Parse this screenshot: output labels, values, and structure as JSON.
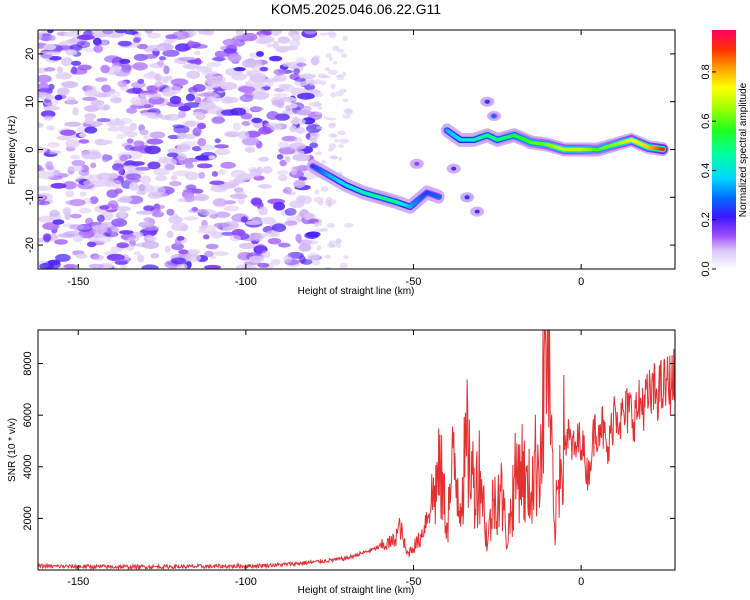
{
  "title": "KOM5.2025.046.06.22.G11",
  "colors": {
    "snr_line": "#e53030",
    "frame": "#000000",
    "background": "#ffffff"
  },
  "chart_data": [
    {
      "type": "heatmap",
      "title": "KOM5.2025.046.06.22.G11",
      "xlabel": "Height of straight line (km)",
      "ylabel": "Frequency (Hz)",
      "colorbar_label": "Normalized spectral amplitude",
      "colormap": "gist_rainbow (white/violet at 0 to red at 1)",
      "xlim": [
        -162,
        28
      ],
      "ylim": [
        -25,
        25
      ],
      "x_ticks": [
        -150,
        -100,
        -50,
        0
      ],
      "y_ticks": [
        -20,
        -10,
        0,
        10,
        20
      ],
      "colorbar_range": [
        0,
        0.97
      ],
      "colorbar_ticks": [
        0.0,
        0.2,
        0.4,
        0.6,
        0.8
      ],
      "noise_region_x": [
        -162,
        -79
      ],
      "signal_trace": [
        {
          "x": -80,
          "y": -3.5,
          "amp": 0.25
        },
        {
          "x": -75,
          "y": -5.5,
          "amp": 0.35
        },
        {
          "x": -70,
          "y": -7.5,
          "amp": 0.4
        },
        {
          "x": -65,
          "y": -9,
          "amp": 0.45
        },
        {
          "x": -60,
          "y": -10,
          "amp": 0.5
        },
        {
          "x": -55,
          "y": -11,
          "amp": 0.5
        },
        {
          "x": -51,
          "y": -12,
          "amp": 0.35
        },
        {
          "x": -46,
          "y": -9,
          "amp": 0.25
        },
        {
          "x": -42,
          "y": -10,
          "amp": 0.3
        },
        {
          "x": -40,
          "y": 4,
          "amp": 0.35
        },
        {
          "x": -36,
          "y": 2,
          "amp": 0.4
        },
        {
          "x": -32,
          "y": 2,
          "amp": 0.45
        },
        {
          "x": -28,
          "y": 3,
          "amp": 0.5
        },
        {
          "x": -25,
          "y": 2,
          "amp": 0.5
        },
        {
          "x": -20,
          "y": 3,
          "amp": 0.55
        },
        {
          "x": -15,
          "y": 1.5,
          "amp": 0.6
        },
        {
          "x": -10,
          "y": 1,
          "amp": 0.65
        },
        {
          "x": -5,
          "y": 0,
          "amp": 0.7
        },
        {
          "x": 0,
          "y": 0,
          "amp": 0.7
        },
        {
          "x": 5,
          "y": 0,
          "amp": 0.6
        },
        {
          "x": 10,
          "y": 1,
          "amp": 0.65
        },
        {
          "x": 15,
          "y": 2,
          "amp": 0.75
        },
        {
          "x": 20,
          "y": 0.5,
          "amp": 0.8
        },
        {
          "x": 25,
          "y": 0,
          "amp": 0.95
        }
      ],
      "side_branches": [
        {
          "x": -28,
          "y": 10,
          "amp": 0.25
        },
        {
          "x": -26,
          "y": 7,
          "amp": 0.3
        },
        {
          "x": -38,
          "y": -4,
          "amp": 0.2
        },
        {
          "x": -34,
          "y": -10,
          "amp": 0.25
        },
        {
          "x": -31,
          "y": -13,
          "amp": 0.2
        },
        {
          "x": -49,
          "y": -3,
          "amp": 0.15
        }
      ]
    },
    {
      "type": "line",
      "xlabel": "Height of straight line (km)",
      "ylabel": "SNR (10 * v/v)",
      "xlim": [
        -162,
        28
      ],
      "ylim": [
        0,
        9300
      ],
      "x_ticks": [
        -150,
        -100,
        -50,
        0
      ],
      "y_ticks": [
        2000,
        4000,
        6000,
        8000
      ],
      "series": [
        {
          "x": [
            -162,
            -140,
            -120,
            -100,
            -90,
            -80,
            -70,
            -62,
            -56,
            -54,
            -52,
            -48,
            -45,
            -42,
            -40,
            -38,
            -36,
            -34,
            -32,
            -30,
            -28,
            -26,
            -24,
            -22,
            -20,
            -18,
            -16,
            -14,
            -12,
            -10,
            -8,
            -6,
            -4,
            -2,
            0,
            2,
            4,
            6,
            8,
            10,
            12,
            14,
            16,
            18,
            20,
            22,
            24,
            26,
            28
          ],
          "values": [
            150,
            120,
            130,
            150,
            200,
            300,
            450,
            800,
            1100,
            1700,
            600,
            1200,
            2500,
            3800,
            1800,
            4200,
            2700,
            4800,
            3300,
            3900,
            1000,
            2800,
            3100,
            1200,
            3300,
            4200,
            2900,
            3800,
            4900,
            9300,
            1200,
            4800,
            5200,
            4600,
            5200,
            3600,
            5400,
            5800,
            4400,
            6400,
            5800,
            6200,
            6000,
            6500,
            6600,
            6900,
            7000,
            7200,
            7400
          ]
        }
      ]
    }
  ]
}
